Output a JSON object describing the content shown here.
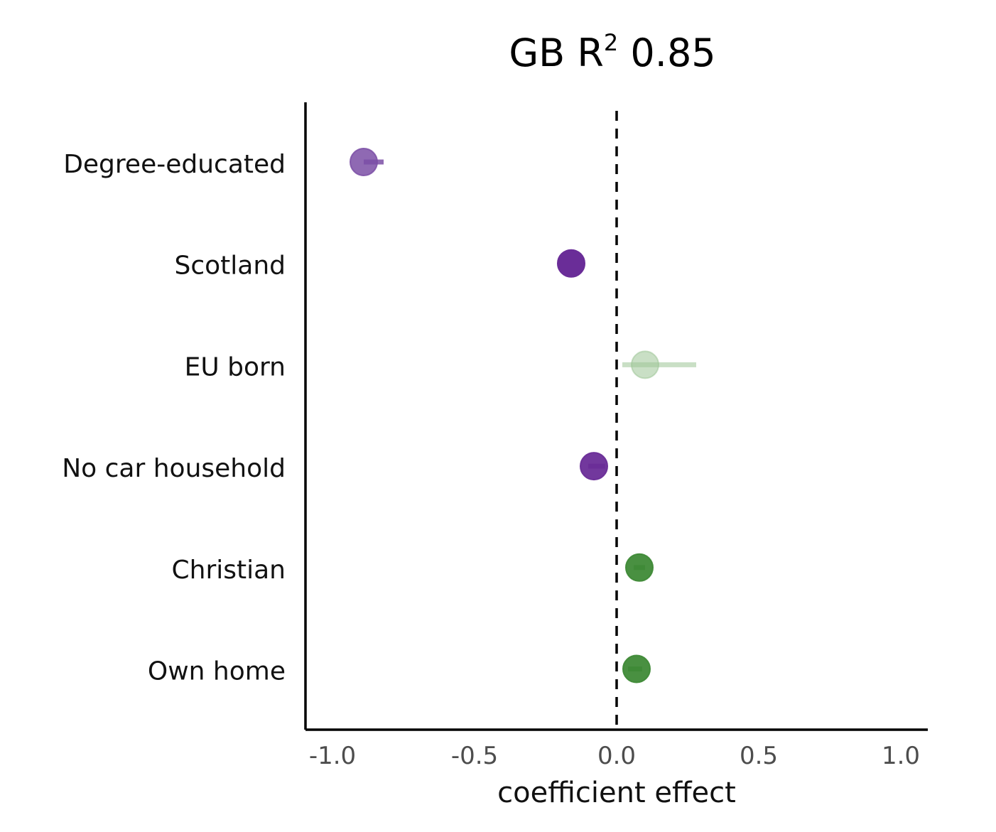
{
  "chart_data": {
    "type": "dot-whisker",
    "title": {
      "prefix": "GB R",
      "superscript": "2",
      "suffix": " 0.85"
    },
    "xlabel": "coefficient effect",
    "ylabel": "",
    "xlim": [
      -1.1,
      1.1
    ],
    "xticks": [
      -1.0,
      -0.5,
      0.0,
      0.5,
      1.0
    ],
    "xtick_labels": [
      "-1.0",
      "-0.5",
      "0.0",
      "0.5",
      "1.0"
    ],
    "reference_line": {
      "x": 0.0,
      "style": "dashed"
    },
    "grid": false,
    "series": [
      {
        "label": "Degree-educated",
        "estimate": -0.89,
        "ci_low": -0.89,
        "ci_high": -0.82,
        "color": "#7b4fa6",
        "opacity": 0.85
      },
      {
        "label": "Scotland",
        "estimate": -0.16,
        "ci_low": -0.17,
        "ci_high": -0.14,
        "color": "#6a2d98",
        "opacity": 1.0
      },
      {
        "label": "EU born",
        "estimate": 0.1,
        "ci_low": 0.02,
        "ci_high": 0.28,
        "color": "#9cc596",
        "opacity": 0.55
      },
      {
        "label": "No car household",
        "estimate": -0.08,
        "ci_low": -0.1,
        "ci_high": -0.04,
        "color": "#6a2d98",
        "opacity": 0.95
      },
      {
        "label": "Christian",
        "estimate": 0.08,
        "ci_low": 0.06,
        "ci_high": 0.1,
        "color": "#3f8a37",
        "opacity": 0.95
      },
      {
        "label": "Own home",
        "estimate": 0.07,
        "ci_low": 0.04,
        "ci_high": 0.09,
        "color": "#3f8a37",
        "opacity": 0.95
      }
    ]
  }
}
